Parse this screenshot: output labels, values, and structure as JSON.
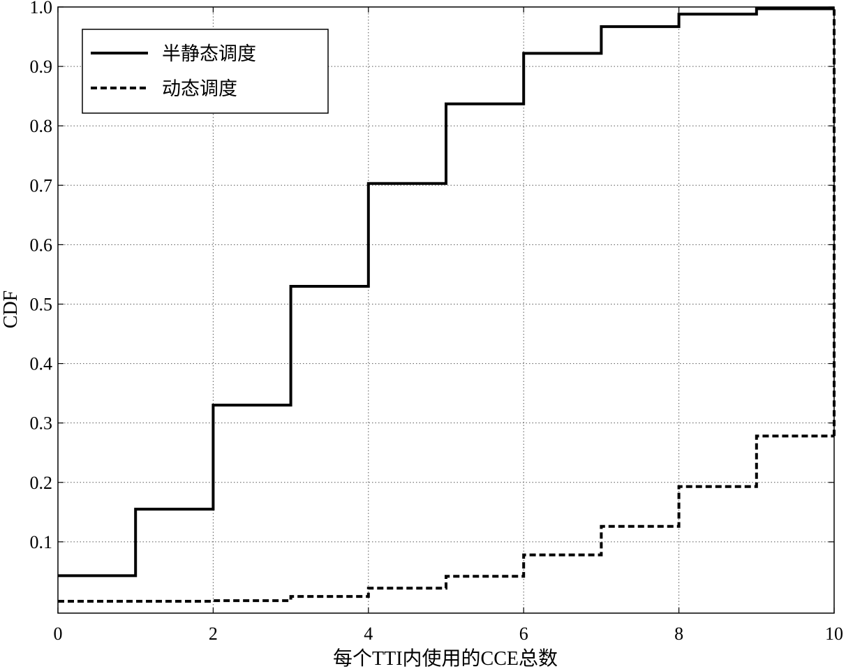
{
  "chart_data": {
    "type": "line",
    "title": "",
    "xlabel": "每个TTI内使用的CCE总数",
    "ylabel": "CDF",
    "xlim": [
      0,
      10
    ],
    "ylim": [
      -0.02,
      1.0
    ],
    "x_ticks": [
      0,
      2,
      4,
      6,
      8,
      10
    ],
    "x_tick_labels": [
      "0",
      "2",
      "4",
      "6",
      "8",
      "10"
    ],
    "y_ticks": [
      0.1,
      0.2,
      0.3,
      0.4,
      0.5,
      0.6,
      0.7,
      0.8,
      0.9,
      1.0
    ],
    "y_tick_labels": [
      "0.1",
      "0.2",
      "0.3",
      "0.4",
      "0.5",
      "0.6",
      "0.7",
      "0.8",
      "0.9",
      "1.0"
    ],
    "grid": true,
    "legend_position": "top-left",
    "series": [
      {
        "name": "半静态调度",
        "style": "solid",
        "color": "#000000",
        "step": true,
        "x": [
          0,
          1,
          2,
          3,
          4,
          5,
          6,
          7,
          8,
          9,
          10
        ],
        "y": [
          0.043,
          0.155,
          0.33,
          0.53,
          0.703,
          0.837,
          0.922,
          0.967,
          0.988,
          0.997,
          0.997
        ]
      },
      {
        "name": "动态调度",
        "style": "dashed",
        "color": "#000000",
        "step": true,
        "x": [
          0,
          1,
          2,
          3,
          4,
          5,
          6,
          7,
          8,
          9,
          10
        ],
        "y": [
          0.0,
          0.0,
          0.001,
          0.008,
          0.022,
          0.042,
          0.078,
          0.126,
          0.193,
          0.278,
          0.278
        ]
      }
    ]
  }
}
